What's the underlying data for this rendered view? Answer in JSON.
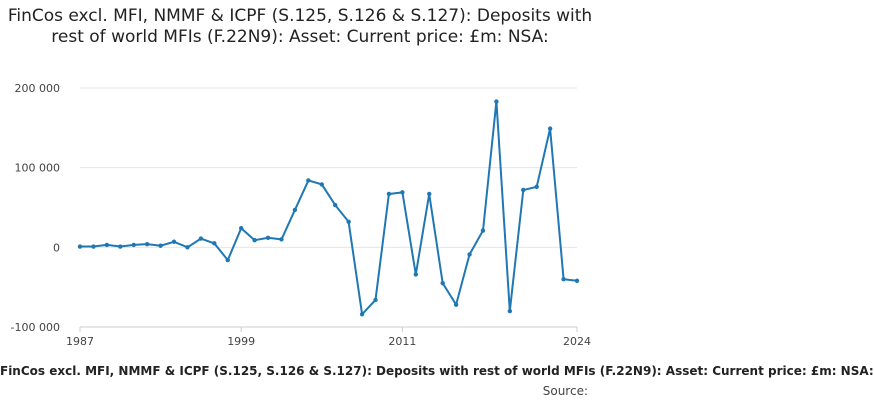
{
  "title": "FinCos excl. MFI, NMMF & ICPF (S.125, S.126 & S.127): Deposits with rest of world MFIs (F.22N9): Asset: Current price: £m: NSA:",
  "footer_label": "FinCos excl. MFI, NMMF & ICPF (S.125, S.126 & S.127): Deposits with rest of world MFIs (F.22N9): Asset: Current price: £m: NSA:",
  "source_label": "Source:",
  "colors": {
    "line": "#1f77b4",
    "grid": "#e6e6e6",
    "axis": "#cccccc"
  },
  "chart_data": {
    "type": "line",
    "x": [
      1987,
      1988,
      1989,
      1990,
      1991,
      1992,
      1993,
      1994,
      1995,
      1996,
      1997,
      1998,
      1999,
      2000,
      2001,
      2002,
      2003,
      2004,
      2005,
      2006,
      2007,
      2008,
      2009,
      2010,
      2011,
      2012,
      2013,
      2014,
      2015,
      2016,
      2017,
      2018,
      2019,
      2020,
      2021,
      2022,
      2023,
      2024
    ],
    "values": [
      1000,
      1000,
      3000,
      1000,
      3000,
      4000,
      2000,
      7000,
      0,
      11000,
      5000,
      -16000,
      24000,
      9000,
      12000,
      10000,
      47000,
      84000,
      79000,
      53000,
      32000,
      -84000,
      -66000,
      67000,
      69000,
      -34000,
      67000,
      -45000,
      -72000,
      -9000,
      21000,
      183000,
      -80000,
      72000,
      76000,
      149000,
      -40000,
      -42000
    ],
    "x_ticks": [
      "1987",
      "1999",
      "2011",
      "2024"
    ],
    "y_ticks": [
      "200 000",
      "100 000",
      "0",
      "-100 000"
    ],
    "y_tick_values": [
      200000,
      100000,
      0,
      -100000
    ],
    "xlim": [
      1987,
      2024
    ],
    "ylim": [
      -100000,
      200000
    ],
    "grid": true
  }
}
